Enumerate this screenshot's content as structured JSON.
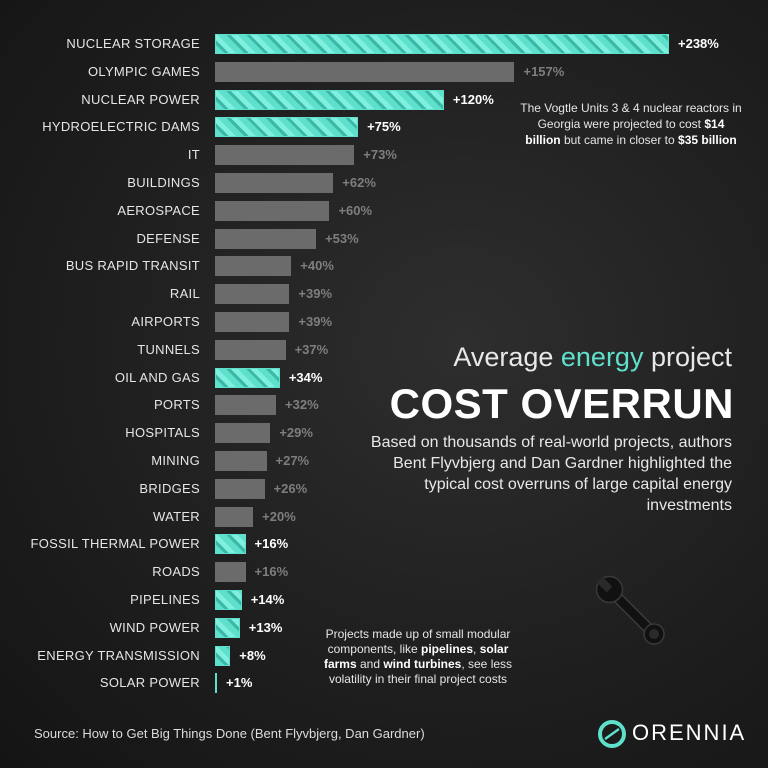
{
  "chart_data": {
    "type": "bar",
    "orientation": "horizontal",
    "categories": [
      "NUCLEAR STORAGE",
      "OLYMPIC GAMES",
      "NUCLEAR POWER",
      "HYDROELECTRIC DAMS",
      "IT",
      "BUILDINGS",
      "AEROSPACE",
      "DEFENSE",
      "BUS RAPID TRANSIT",
      "RAIL",
      "AIRPORTS",
      "TUNNELS",
      "OIL AND GAS",
      "PORTS",
      "HOSPITALS",
      "MINING",
      "BRIDGES",
      "WATER",
      "FOSSIL THERMAL POWER",
      "ROADS",
      "PIPELINES",
      "WIND POWER",
      "ENERGY TRANSMISSION",
      "SOLAR POWER"
    ],
    "values": [
      238,
      157,
      120,
      75,
      73,
      62,
      60,
      53,
      40,
      39,
      39,
      37,
      34,
      32,
      29,
      27,
      26,
      20,
      16,
      16,
      14,
      13,
      8,
      1
    ],
    "value_labels": [
      "+238%",
      "+157%",
      "+120%",
      "+75%",
      "+73%",
      "+62%",
      "+60%",
      "+53%",
      "+40%",
      "+39%",
      "+39%",
      "+37%",
      "+34%",
      "+32%",
      "+29%",
      "+27%",
      "+26%",
      "+20%",
      "+16%",
      "+16%",
      "+14%",
      "+13%",
      "+8%",
      "+1%"
    ],
    "highlighted": [
      true,
      false,
      true,
      true,
      false,
      false,
      false,
      false,
      false,
      false,
      false,
      false,
      true,
      false,
      false,
      false,
      false,
      false,
      true,
      false,
      true,
      true,
      true,
      true
    ],
    "xlim": [
      0,
      238
    ],
    "grid": false
  },
  "colors": {
    "accent": "#5fe0cc",
    "bar": "#6b6b6b",
    "muted_label": "#7e7e7e"
  },
  "title": {
    "line1_a": "Average ",
    "line1_accent": "energy",
    "line1_b": " project",
    "line2": "COST OVERRUN"
  },
  "subtitle": "Based on thousands of real-world projects, authors Bent Flyvbjerg and Dan Gardner highlighted the typical cost overruns of large capital energy investments",
  "note_vogtle": {
    "a": "The Vogtle Units 3 & 4 nuclear reactors in Georgia were projected to cost ",
    "b1": "$14 billion",
    "c": " but came in closer to ",
    "b2": "$35 billion"
  },
  "note_modular": {
    "a": "Projects made up of small modular components, like ",
    "b1": "pipelines",
    "c": ", ",
    "b2": "solar farms",
    "d": " and ",
    "b3": "wind turbines",
    "e": ", see less volatility in their final project costs"
  },
  "source": "Source: How to Get Big Things Done (Bent Flyvbjerg, Dan Gardner)",
  "logo": {
    "text": "ORENNIA",
    "icon": "orennia-logo-icon"
  },
  "decoration": {
    "icon": "wrench-icon"
  }
}
